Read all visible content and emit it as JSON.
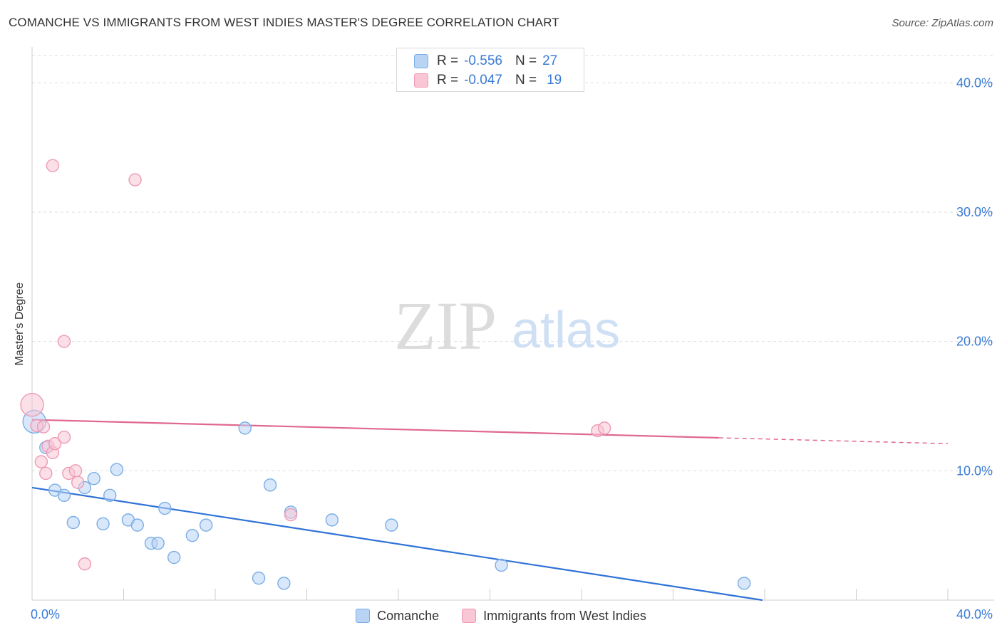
{
  "header": {
    "title": "COMANCHE VS IMMIGRANTS FROM WEST INDIES MASTER'S DEGREE CORRELATION CHART",
    "source": "Source: ZipAtlas.com"
  },
  "watermark": {
    "zip": "ZIP",
    "atlas": "atlas"
  },
  "colors": {
    "comanche_fill": "#b9d3f5",
    "comanche_stroke": "#7aaee6",
    "comanche_line": "#2f72d6",
    "westindies_fill": "#f8c6d5",
    "westindies_stroke": "#ef9ab5",
    "westindies_line": "#e06890",
    "tick_label": "#3a7bd5",
    "grid": "#dddddd"
  },
  "legend_top": {
    "rows": [
      {
        "r_label": "R =",
        "r_value": "-0.556",
        "n_label": "N =",
        "n_value": "27"
      },
      {
        "r_label": "R =",
        "r_value": "-0.047",
        "n_label": "N =",
        "n_value": "19"
      }
    ]
  },
  "chart_data": {
    "type": "scatter",
    "title": "COMANCHE VS IMMIGRANTS FROM WEST INDIES MASTER'S DEGREE CORRELATION CHART",
    "xlabel": "",
    "ylabel": "Master's Degree",
    "xlim": [
      0,
      40
    ],
    "ylim": [
      0,
      42
    ],
    "x_tick_labels": [
      {
        "value": 0,
        "label": "0.0%"
      },
      {
        "value": 40,
        "label": "40.0%"
      }
    ],
    "x_minor_ticks": [
      0,
      4,
      8,
      12,
      16,
      20,
      24,
      28,
      32,
      36,
      40
    ],
    "y_ticks": [
      {
        "value": 10,
        "label": "10.0%"
      },
      {
        "value": 20,
        "label": "20.0%"
      },
      {
        "value": 30,
        "label": "30.0%"
      },
      {
        "value": 40,
        "label": "40.0%"
      }
    ],
    "grid": true,
    "legend": "bottom-center",
    "series": [
      {
        "name": "Comanche",
        "points": [
          [
            0.1,
            13.8
          ],
          [
            0.6,
            11.8
          ],
          [
            1.0,
            8.5
          ],
          [
            1.4,
            8.1
          ],
          [
            1.8,
            6.0
          ],
          [
            2.3,
            8.7
          ],
          [
            2.7,
            9.4
          ],
          [
            3.1,
            5.9
          ],
          [
            3.4,
            8.1
          ],
          [
            3.7,
            10.1
          ],
          [
            4.2,
            6.2
          ],
          [
            4.6,
            5.8
          ],
          [
            5.2,
            4.4
          ],
          [
            5.5,
            4.4
          ],
          [
            5.8,
            7.1
          ],
          [
            6.2,
            3.3
          ],
          [
            7.0,
            5.0
          ],
          [
            7.6,
            5.8
          ],
          [
            9.3,
            13.3
          ],
          [
            9.9,
            1.7
          ],
          [
            10.4,
            8.9
          ],
          [
            11.0,
            1.3
          ],
          [
            11.3,
            6.8
          ],
          [
            13.1,
            6.2
          ],
          [
            15.7,
            5.8
          ],
          [
            20.5,
            2.7
          ],
          [
            31.1,
            1.3
          ]
        ],
        "trend": {
          "x0": 0,
          "y0": 8.7,
          "x1": 31.9,
          "y1": 0
        }
      },
      {
        "name": "Immigrants from West Indies",
        "points": [
          [
            0.0,
            15.1
          ],
          [
            0.2,
            13.5
          ],
          [
            0.5,
            13.4
          ],
          [
            0.4,
            10.7
          ],
          [
            0.6,
            9.8
          ],
          [
            0.7,
            11.9
          ],
          [
            0.9,
            11.4
          ],
          [
            0.9,
            33.6
          ],
          [
            1.0,
            12.1
          ],
          [
            1.4,
            12.6
          ],
          [
            1.4,
            20.0
          ],
          [
            1.6,
            9.8
          ],
          [
            1.9,
            10.0
          ],
          [
            2.0,
            9.1
          ],
          [
            2.3,
            2.8
          ],
          [
            4.5,
            32.5
          ],
          [
            11.3,
            6.6
          ],
          [
            24.7,
            13.1
          ],
          [
            25.0,
            13.3
          ]
        ],
        "trend": {
          "x0": 0,
          "y0": 13.95,
          "x1": 30.0,
          "y1": 12.55,
          "dash_to_x": 40,
          "dash_to_y": 12.1
        }
      }
    ]
  },
  "legend_bottom": {
    "items": [
      {
        "label": "Comanche"
      },
      {
        "label": "Immigrants from West Indies"
      }
    ]
  }
}
